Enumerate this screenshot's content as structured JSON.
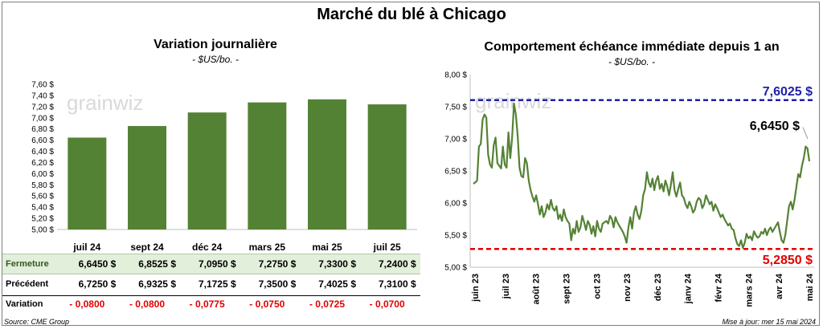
{
  "page_title": "Marché du blé à Chicago",
  "left_panel": {
    "title": "Variation journalière",
    "units": "- $US/bo. -",
    "watermark": "grainwiz",
    "table": {
      "rows": [
        {
          "label": "Fermeture",
          "values": [
            "6,6450 $",
            "6,8525 $",
            "7,0950 $",
            "7,2750 $",
            "7,3300 $",
            "7,2400 $"
          ]
        },
        {
          "label": "Précédent",
          "values": [
            "6,7250 $",
            "6,9325 $",
            "7,1725 $",
            "7,3500 $",
            "7,4025 $",
            "7,3100 $"
          ]
        },
        {
          "label": "Variation",
          "values": [
            "- 0,0800",
            "- 0,0800",
            "- 0,0775",
            "- 0,0750",
            "- 0,0725",
            "- 0,0700"
          ]
        }
      ]
    },
    "source": "Source: CME Group"
  },
  "right_panel": {
    "title": "Comportement  échéance immédiate depuis 1 an",
    "units": "- $US/bo. -",
    "watermark": "grainwiz",
    "high_label": "7,6025 $",
    "low_label": "5,2850 $",
    "last_label": "6,6450 $",
    "updated": "Mise à jour: mer 15 mai 2024"
  },
  "colors": {
    "bar": "#548235",
    "line": "#548235",
    "high": "#1f1fa8",
    "low": "#e00000",
    "row_highlight": "#e2efda"
  },
  "chart_data": [
    {
      "type": "bar",
      "title": "Variation journalière",
      "categories": [
        "juil 24",
        "sept 24",
        "déc 24",
        "mars 25",
        "mai 25",
        "juil 25"
      ],
      "values": [
        6.645,
        6.8525,
        7.095,
        7.275,
        7.33,
        7.24
      ],
      "ylim": [
        5.0,
        7.6
      ],
      "yticks": [
        "5,00 $",
        "5,20 $",
        "5,40 $",
        "5,60 $",
        "5,80 $",
        "6,00 $",
        "6,20 $",
        "6,40 $",
        "6,60 $",
        "6,80 $",
        "7,00 $",
        "7,20 $",
        "7,40 $",
        "7,60 $"
      ],
      "ylabel": "$US/bo."
    },
    {
      "type": "line",
      "title": "Comportement  échéance immédiate depuis 1 an",
      "ylim": [
        5.0,
        8.0
      ],
      "yticks": [
        "5,00 $",
        "5,50 $",
        "6,00 $",
        "6,50 $",
        "7,00 $",
        "7,50 $",
        "8,00 $"
      ],
      "xticks": [
        "juin 23",
        "juil 23",
        "août 23",
        "sept 23",
        "oct 23",
        "nov 23",
        "déc 23",
        "janv 24",
        "févr 24",
        "mars 24",
        "avr 24",
        "mai 24"
      ],
      "high": 7.6025,
      "low": 5.285,
      "last": 6.645,
      "series": [
        {
          "name": "Échéance immédiate",
          "values": [
            6.3,
            6.32,
            6.35,
            6.88,
            6.92,
            7.3,
            7.38,
            7.33,
            6.75,
            6.6,
            6.55,
            6.9,
            7.02,
            6.62,
            6.58,
            6.54,
            6.88,
            6.6,
            6.55,
            7.1,
            6.7,
            7.02,
            7.55,
            7.38,
            7.05,
            6.55,
            6.42,
            6.4,
            6.7,
            6.62,
            6.35,
            6.2,
            6.1,
            6.02,
            6.12,
            5.98,
            5.82,
            5.95,
            5.78,
            5.85,
            5.98,
            5.9,
            6.05,
            5.92,
            5.88,
            5.95,
            5.75,
            5.82,
            5.72,
            5.9,
            5.78,
            5.72,
            5.68,
            5.42,
            5.6,
            5.52,
            5.72,
            5.55,
            5.62,
            5.8,
            5.7,
            5.58,
            5.72,
            5.66,
            5.52,
            5.64,
            5.48,
            5.72,
            5.6,
            5.55,
            5.68,
            5.7,
            5.72,
            5.68,
            5.8,
            5.75,
            5.62,
            5.78,
            5.7,
            5.65,
            5.6,
            5.55,
            5.48,
            5.38,
            5.62,
            5.78,
            5.6,
            5.85,
            5.95,
            5.82,
            5.75,
            5.88,
            6.12,
            6.22,
            6.48,
            6.32,
            6.25,
            6.38,
            6.2,
            6.35,
            6.42,
            6.22,
            6.3,
            6.18,
            6.35,
            6.26,
            6.12,
            6.28,
            6.48,
            6.2,
            6.1,
            6.22,
            6.32,
            6.12,
            6.08,
            5.98,
            5.92,
            6.02,
            5.95,
            5.85,
            5.9,
            6.02,
            6.08,
            6.05,
            5.92,
            5.98,
            6.12,
            6.05,
            5.98,
            6.02,
            5.88,
            5.98,
            5.92,
            5.85,
            5.78,
            5.82,
            5.75,
            5.7,
            5.65,
            5.68,
            5.6,
            5.58,
            5.45,
            5.36,
            5.33,
            5.42,
            5.3,
            5.38,
            5.52,
            5.45,
            5.48,
            5.42,
            5.56,
            5.5,
            5.46,
            5.48,
            5.55,
            5.52,
            5.6,
            5.5,
            5.58,
            5.62,
            5.55,
            5.6,
            5.65,
            5.7,
            5.55,
            5.42,
            5.38,
            5.5,
            5.72,
            5.95,
            6.02,
            5.9,
            6.05,
            6.25,
            6.45,
            6.4,
            6.58,
            6.7,
            6.88,
            6.85,
            6.65
          ]
        }
      ]
    }
  ]
}
